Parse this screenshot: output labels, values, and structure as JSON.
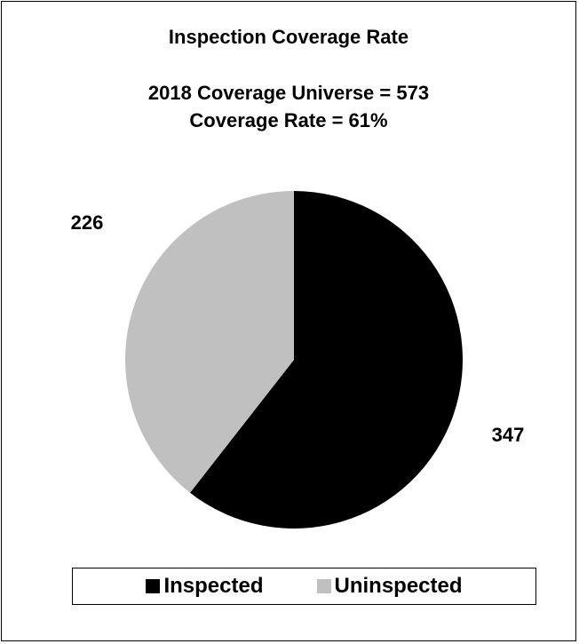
{
  "chart_data": {
    "type": "pie",
    "title": "Inspection Coverage Rate",
    "subtitle_lines": [
      "2018 Coverage Universe = 573",
      "Coverage Rate = 61%"
    ],
    "slices": [
      {
        "label": "Inspected",
        "value": 347,
        "color": "#000000"
      },
      {
        "label": "Uninspected",
        "value": 226,
        "color": "#c0c0c0"
      }
    ],
    "data_labels": [
      "347",
      "226"
    ],
    "legend_position": "bottom"
  }
}
